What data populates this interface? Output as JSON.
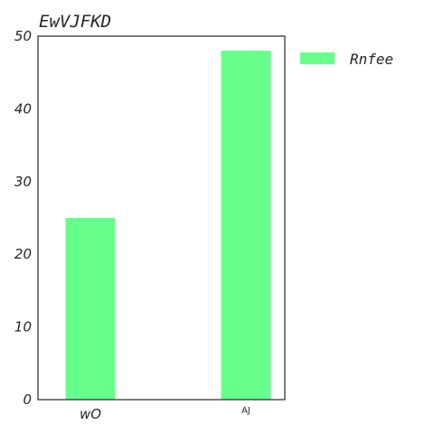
{
  "chart_data": {
    "type": "bar",
    "title": "EwVJFKD",
    "xlabel": "",
    "ylabel": "",
    "categories": [
      "wO",
      "AJ"
    ],
    "series": [
      {
        "name": "Rnfee",
        "values": [
          25,
          48
        ],
        "color": "#66ff8c"
      }
    ],
    "ylim": [
      0,
      50
    ],
    "yticks": [
      0,
      10,
      20,
      30,
      40,
      50
    ],
    "grid": false,
    "legend_position": "outside-right-top"
  }
}
